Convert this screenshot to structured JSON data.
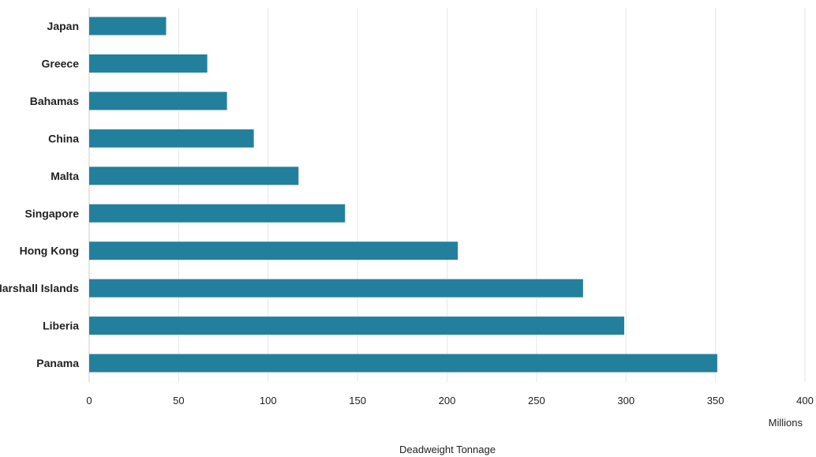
{
  "chart_data": {
    "type": "bar",
    "orientation": "horizontal",
    "categories": [
      "Japan",
      "Greece",
      "Bahamas",
      "China",
      "Malta",
      "Singapore",
      "Hong Kong",
      "Marshall Islands",
      "Liberia",
      "Panama"
    ],
    "values": [
      43,
      66,
      77,
      92,
      117,
      143,
      206,
      276,
      299,
      351
    ],
    "xlabel": "Deadweight Tonnage",
    "unit_label": "Millions",
    "xlim": [
      0,
      400
    ],
    "xticks": [
      "0",
      "50",
      "100",
      "150",
      "200",
      "250",
      "300",
      "350",
      "400"
    ],
    "grid": true,
    "bar_color": "#23809c",
    "grid_color": "#e6e6e6",
    "axis_color": "#cccccc"
  }
}
